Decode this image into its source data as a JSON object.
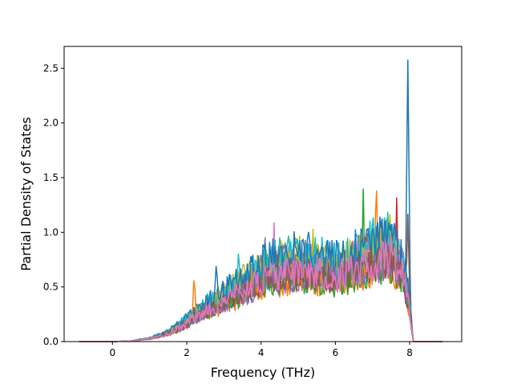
{
  "chart_data": {
    "type": "line",
    "title": "",
    "xlabel": "Frequency (THz)",
    "ylabel": "Partial Density of States",
    "xlim": [
      -1.3,
      9.4
    ],
    "ylim": [
      0.0,
      2.7
    ],
    "x_ticks": [
      0,
      2,
      4,
      6,
      8
    ],
    "x_tick_labels": [
      "0",
      "2",
      "4",
      "6",
      "8"
    ],
    "y_ticks": [
      0.0,
      0.5,
      1.0,
      1.5,
      2.0,
      2.5
    ],
    "y_tick_labels": [
      "0.0",
      "0.5",
      "1.0",
      "1.5",
      "2.0",
      "2.5"
    ],
    "grid": false,
    "legend": "none",
    "x_range": [
      -0.9,
      8.9
    ],
    "series_count": 16,
    "colors": [
      "#1f77b4",
      "#ff7f0e",
      "#2ca02c",
      "#d62728",
      "#9467bd",
      "#8c564b",
      "#e377c2",
      "#7f7f7f",
      "#bcbd22",
      "#17becf",
      "#1f77b4",
      "#ff7f0e",
      "#2ca02c",
      "#9467bd",
      "#8c564b",
      "#e377c2"
    ],
    "series_profile": [
      {
        "x": -0.9,
        "y": 0.0
      },
      {
        "x": 0.0,
        "y": 0.0
      },
      {
        "x": 0.5,
        "y": 0.005
      },
      {
        "x": 1.0,
        "y": 0.03
      },
      {
        "x": 1.5,
        "y": 0.08
      },
      {
        "x": 2.0,
        "y": 0.18
      },
      {
        "x": 2.5,
        "y": 0.3
      },
      {
        "x": 3.0,
        "y": 0.4
      },
      {
        "x": 3.5,
        "y": 0.5
      },
      {
        "x": 4.0,
        "y": 0.6
      },
      {
        "x": 4.5,
        "y": 0.68
      },
      {
        "x": 5.0,
        "y": 0.7
      },
      {
        "x": 5.5,
        "y": 0.68
      },
      {
        "x": 6.0,
        "y": 0.65
      },
      {
        "x": 6.5,
        "y": 0.7
      },
      {
        "x": 7.0,
        "y": 0.8
      },
      {
        "x": 7.5,
        "y": 0.85
      },
      {
        "x": 7.8,
        "y": 0.7
      },
      {
        "x": 8.0,
        "y": 0.3
      },
      {
        "x": 8.1,
        "y": 0.0
      },
      {
        "x": 8.9,
        "y": 0.0
      }
    ],
    "peaks": [
      {
        "x": 7.95,
        "y": 2.58,
        "color": "#8c564b"
      },
      {
        "x": 7.1,
        "y": 1.58,
        "color": "#bcbd22"
      },
      {
        "x": 6.75,
        "y": 1.4,
        "color": "#8c564b"
      },
      {
        "x": 7.65,
        "y": 1.32,
        "color": "#7f7f7f"
      },
      {
        "x": 7.4,
        "y": 1.19,
        "color": "#2ca02c"
      },
      {
        "x": 7.95,
        "y": 1.17,
        "color": "#ff7f0e"
      },
      {
        "x": 4.35,
        "y": 1.09,
        "color": "#9467bd"
      },
      {
        "x": 4.1,
        "y": 1.09,
        "color": "#8c564b"
      },
      {
        "x": 5.4,
        "y": 1.03,
        "color": "#e377c2"
      },
      {
        "x": 3.4,
        "y": 0.92,
        "color": "#8c564b"
      },
      {
        "x": 2.8,
        "y": 0.79,
        "color": "#e377c2"
      },
      {
        "x": 2.2,
        "y": 0.64,
        "color": "#e377c2"
      }
    ]
  }
}
